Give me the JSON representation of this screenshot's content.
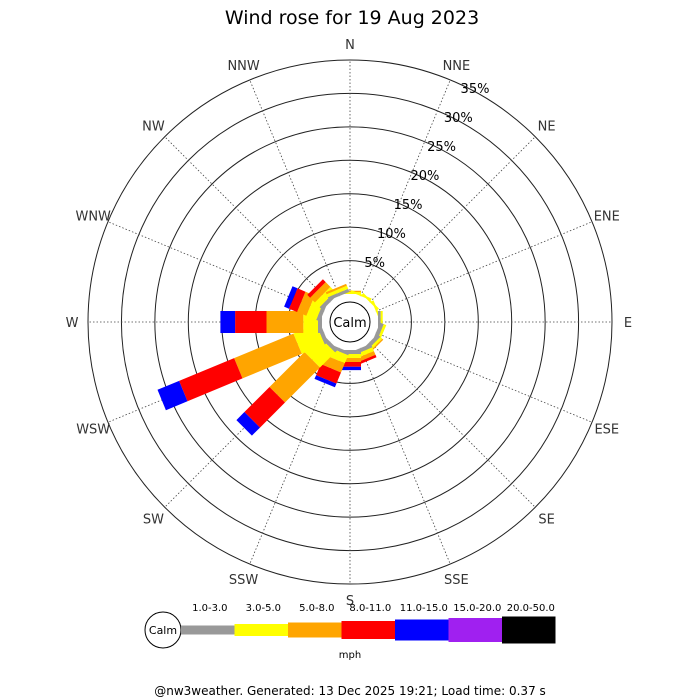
{
  "chart_data": {
    "type": "windrose",
    "title": "Wind rose for 19 Aug 2023",
    "directions": [
      "N",
      "NNE",
      "NE",
      "ENE",
      "E",
      "ESE",
      "SE",
      "SSE",
      "S",
      "SSW",
      "SW",
      "WSW",
      "W",
      "WNW",
      "NW",
      "NNW"
    ],
    "radial_ticks": [
      "5%",
      "10%",
      "15%",
      "20%",
      "25%",
      "30%",
      "35%"
    ],
    "radial_range": [
      0,
      35
    ],
    "calm_label": "Calm",
    "unit_label": "mph",
    "speed_bins": [
      {
        "label": "1.0-3.0",
        "color": "#999999"
      },
      {
        "label": "3.0-5.0",
        "color": "#ffff00"
      },
      {
        "label": "5.0-8.0",
        "color": "#ffa500"
      },
      {
        "label": "8.0-11.0",
        "color": "#ff0000"
      },
      {
        "label": "11.0-15.0",
        "color": "#0000ff"
      },
      {
        "label": "15.0-20.0",
        "color": "#a020f0"
      },
      {
        "label": "20.0-50.0",
        "color": "#000000"
      }
    ],
    "frequencies": {
      "N": [
        0.0,
        0.3,
        0.2,
        0.0,
        0.0,
        0.0,
        0.0
      ],
      "NNE": [
        0.0,
        0.3,
        0.0,
        0.0,
        0.0,
        0.0,
        0.0
      ],
      "NE": [
        0.0,
        0.3,
        0.0,
        0.0,
        0.0,
        0.0,
        0.0
      ],
      "ENE": [
        0.0,
        0.3,
        0.0,
        0.0,
        0.0,
        0.0,
        0.0
      ],
      "E": [
        0.4,
        0.3,
        0.0,
        0.0,
        0.0,
        0.0,
        0.0
      ],
      "ESE": [
        0.6,
        0.4,
        0.0,
        0.0,
        0.0,
        0.0,
        0.0
      ],
      "SE": [
        0.6,
        0.4,
        0.2,
        0.0,
        0.0,
        0.0,
        0.0
      ],
      "SSE": [
        0.6,
        0.6,
        0.6,
        0.4,
        0.0,
        0.0,
        0.0
      ],
      "S": [
        0.6,
        0.6,
        0.6,
        0.7,
        0.5,
        0.0,
        0.0
      ],
      "SSW": [
        0.5,
        1.3,
        1.5,
        1.8,
        0.6,
        0.0,
        0.0
      ],
      "SW": [
        0.6,
        3.2,
        7.4,
        5.3,
        1.7,
        0.0,
        0.0
      ],
      "WSW": [
        0.6,
        3.7,
        9.6,
        8.9,
        3.5,
        0.0,
        0.0
      ],
      "W": [
        0.6,
        2.2,
        5.5,
        4.7,
        2.2,
        0.0,
        0.0
      ],
      "WNW": [
        0.6,
        1.6,
        1.5,
        1.3,
        0.8,
        0.0,
        0.0
      ],
      "NW": [
        0.6,
        1.0,
        1.0,
        0.6,
        0.0,
        0.0,
        0.0
      ],
      "NNW": [
        0.5,
        0.5,
        0.3,
        0.0,
        0.0,
        0.0,
        0.0
      ]
    }
  },
  "footer": "@nw3weather. Generated: 13 Dec 2025 19:21; Load time: 0.37 s"
}
